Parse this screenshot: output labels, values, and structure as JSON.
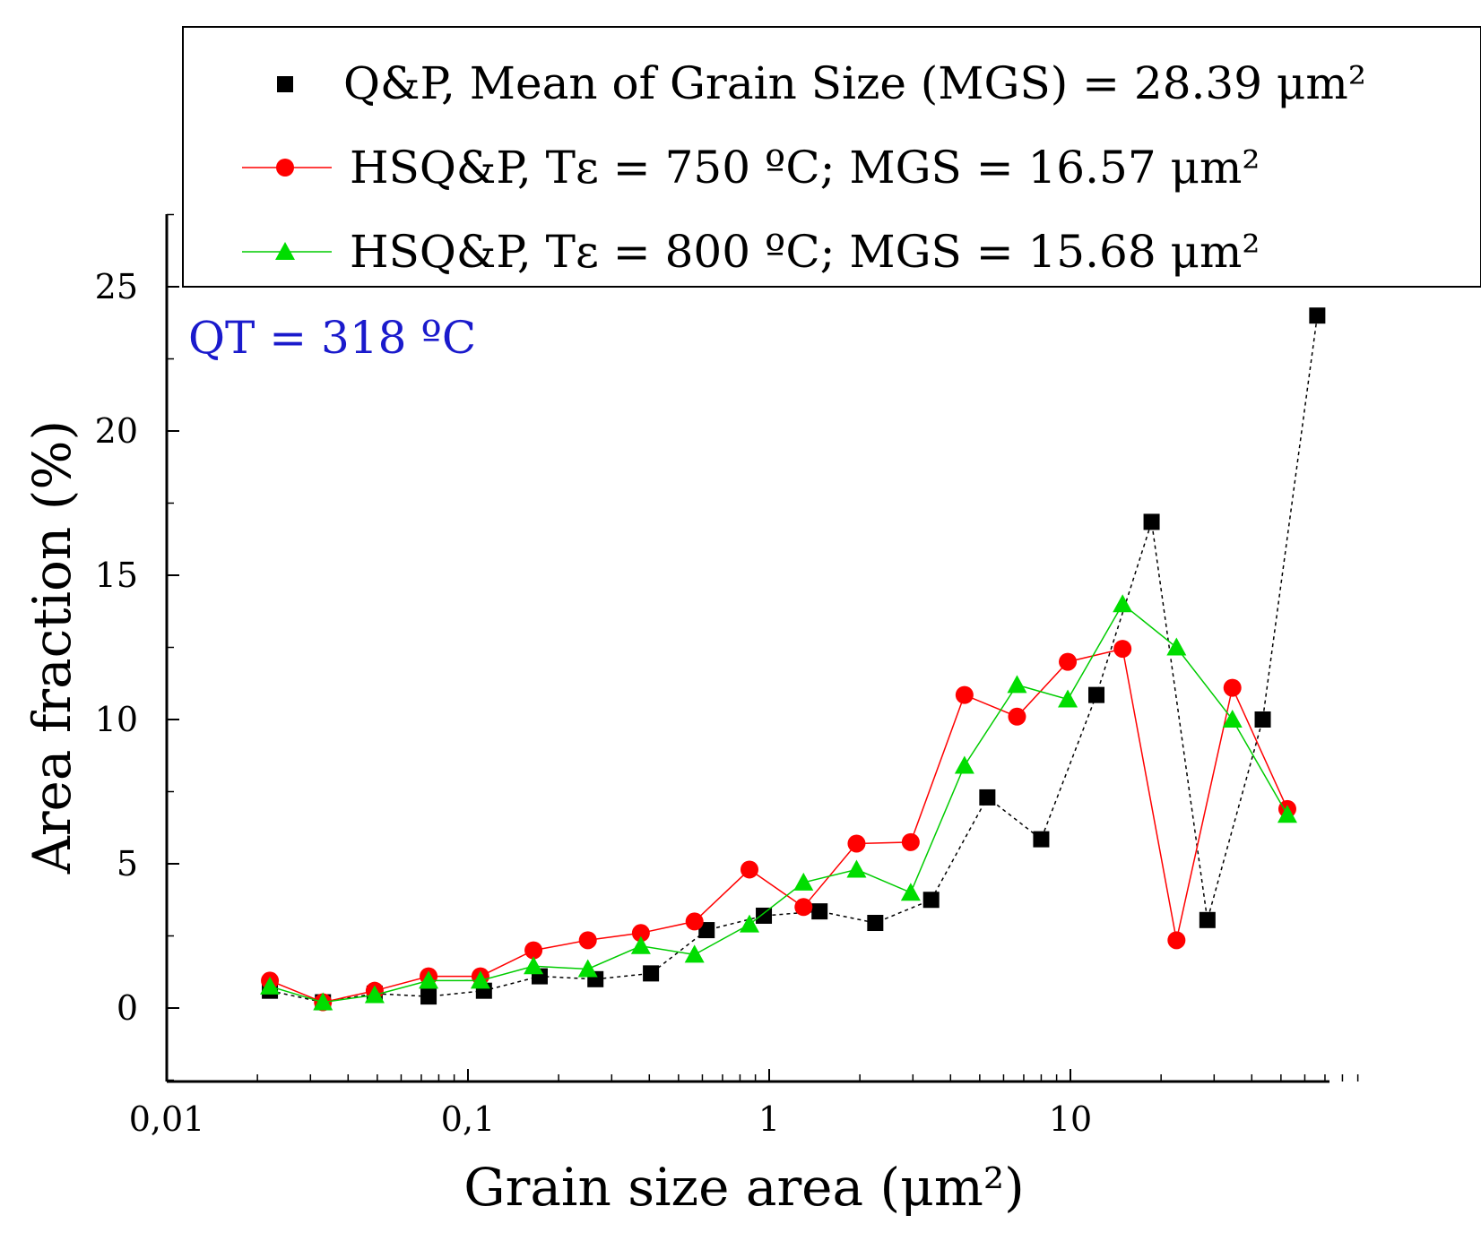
{
  "chart_data": {
    "type": "line",
    "title": "",
    "xlabel": "Grain size area (μm²)",
    "ylabel": "Area fraction (%)",
    "x_scale": "log",
    "xlim": [
      0.01,
      90
    ],
    "ylim": [
      -2.5,
      27.5
    ],
    "x_ticks": [
      {
        "value": 0.01,
        "label": "0,01"
      },
      {
        "value": 0.1,
        "label": "0,1"
      },
      {
        "value": 1,
        "label": "1"
      },
      {
        "value": 10,
        "label": "10"
      }
    ],
    "y_ticks": [
      {
        "value": 0,
        "label": "0"
      },
      {
        "value": 5,
        "label": "5"
      },
      {
        "value": 10,
        "label": "10"
      },
      {
        "value": 15,
        "label": "15"
      },
      {
        "value": 20,
        "label": "20"
      },
      {
        "value": 25,
        "label": "25"
      }
    ],
    "annotation": {
      "text": "QT = 318 ºC",
      "color": "#1a1acc"
    },
    "legend_position": "top",
    "series": [
      {
        "name": "Q&P, Mean of Grain Size (MGS) = 28.39 μm²",
        "color": "#000000",
        "marker": "square",
        "points": [
          [
            0.022,
            0.6
          ],
          [
            0.033,
            0.2
          ],
          [
            0.049,
            0.5
          ],
          [
            0.074,
            0.4
          ],
          [
            0.113,
            0.6
          ],
          [
            0.173,
            1.1
          ],
          [
            0.265,
            1.0
          ],
          [
            0.405,
            1.2
          ],
          [
            0.62,
            2.7
          ],
          [
            0.96,
            3.2
          ],
          [
            1.47,
            3.35
          ],
          [
            2.25,
            2.95
          ],
          [
            3.45,
            3.75
          ],
          [
            5.3,
            7.3
          ],
          [
            8.0,
            5.85
          ],
          [
            12.2,
            10.85
          ],
          [
            18.6,
            16.85
          ],
          [
            28.5,
            3.05
          ],
          [
            43.5,
            10.0
          ],
          [
            66.0,
            24.0
          ]
        ]
      },
      {
        "name": "HSQ&P, Tε = 750 ºC; MGS = 16.57 μm²",
        "color": "#ff0000",
        "marker": "circle",
        "points": [
          [
            0.022,
            0.95
          ],
          [
            0.033,
            0.2
          ],
          [
            0.049,
            0.6
          ],
          [
            0.074,
            1.1
          ],
          [
            0.11,
            1.1
          ],
          [
            0.165,
            2.0
          ],
          [
            0.25,
            2.35
          ],
          [
            0.375,
            2.6
          ],
          [
            0.565,
            3.0
          ],
          [
            0.86,
            4.8
          ],
          [
            1.3,
            3.5
          ],
          [
            1.95,
            5.7
          ],
          [
            2.95,
            5.75
          ],
          [
            4.45,
            10.85
          ],
          [
            6.65,
            10.1
          ],
          [
            9.8,
            12.0
          ],
          [
            14.9,
            12.45
          ],
          [
            22.5,
            2.35
          ],
          [
            34.5,
            11.1
          ],
          [
            52.5,
            6.9
          ]
        ]
      },
      {
        "name": "HSQ&P, Tε = 800 ºC; MGS = 15.68 μm²",
        "color": "#00dd00",
        "marker": "triangle",
        "points": [
          [
            0.022,
            0.75
          ],
          [
            0.033,
            0.2
          ],
          [
            0.049,
            0.45
          ],
          [
            0.074,
            0.95
          ],
          [
            0.11,
            0.95
          ],
          [
            0.165,
            1.45
          ],
          [
            0.25,
            1.35
          ],
          [
            0.375,
            2.15
          ],
          [
            0.565,
            1.85
          ],
          [
            0.86,
            2.9
          ],
          [
            1.3,
            4.35
          ],
          [
            1.95,
            4.8
          ],
          [
            2.95,
            4.0
          ],
          [
            4.45,
            8.4
          ],
          [
            6.65,
            11.2
          ],
          [
            9.8,
            10.7
          ],
          [
            14.9,
            14.0
          ],
          [
            22.5,
            12.5
          ],
          [
            34.5,
            10.0
          ],
          [
            52.5,
            6.7
          ]
        ]
      }
    ]
  }
}
